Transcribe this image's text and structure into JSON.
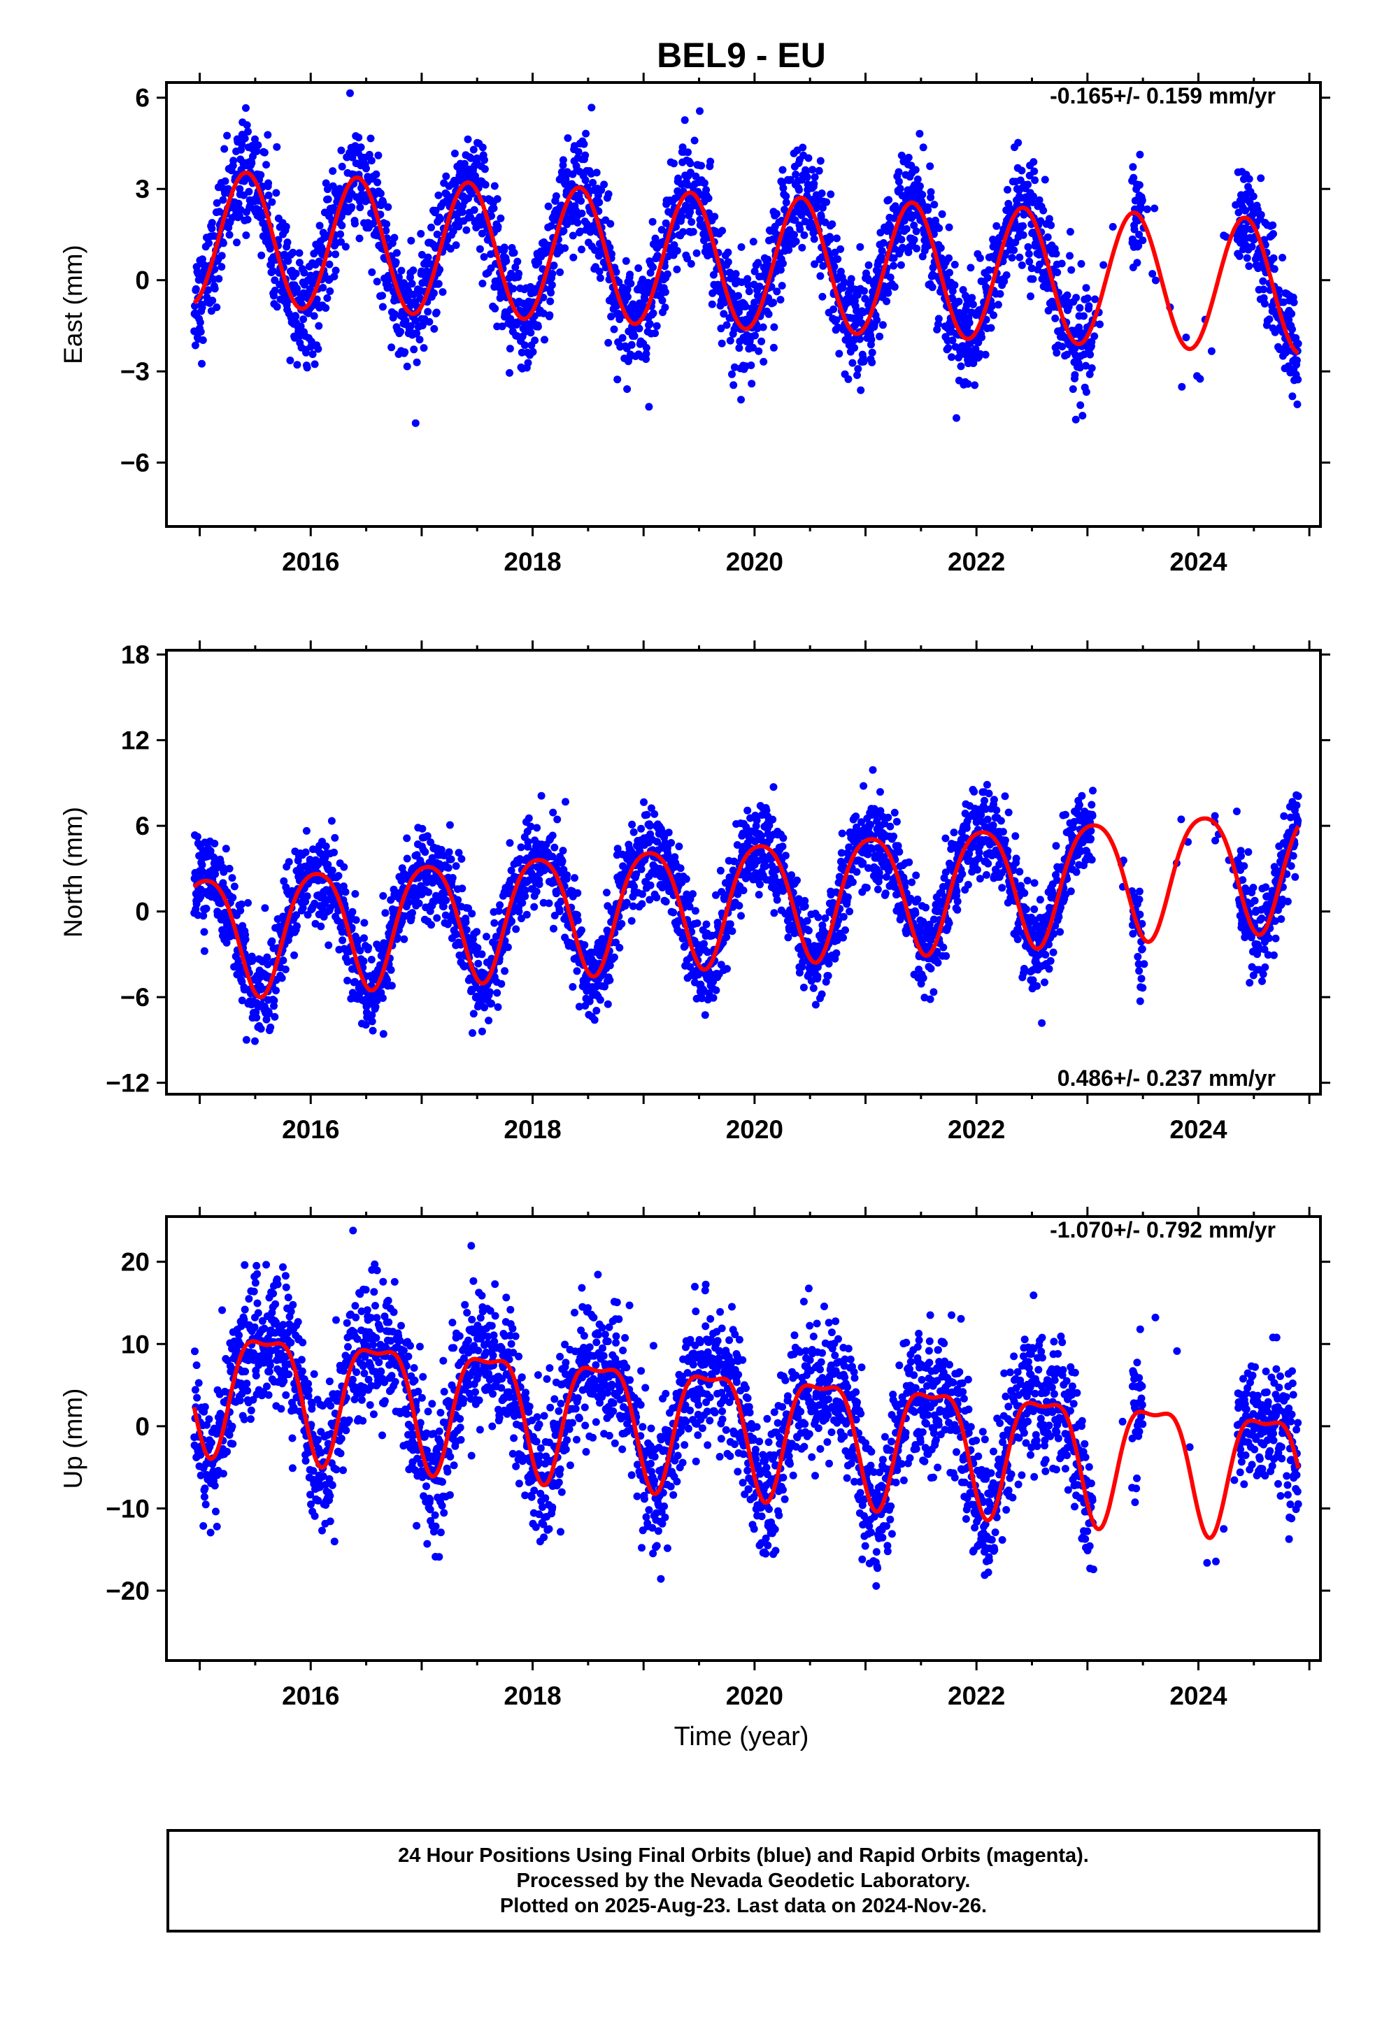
{
  "title": "BEL9 - EU",
  "colors": {
    "data": "#0000ff",
    "model": "#ff0000",
    "frame": "#000000"
  },
  "xlabel": "Time (year)",
  "caption": {
    "line1": "24 Hour Positions Using Final Orbits (blue) and Rapid Orbits (magenta).",
    "line2": "Processed by the Nevada Geodetic Laboratory.",
    "line3": "Plotted on 2025-Aug-23. Last data on 2024-Nov-26."
  },
  "chart_data": [
    {
      "type": "scatter",
      "ylabel": "East (mm)",
      "rate_label": "-0.165+/- 0.159 mm/yr",
      "rate_position": "top-right",
      "xlim": [
        2014.7,
        2025.1
      ],
      "ylim": [
        -8.1,
        6.5
      ],
      "xticks": [
        2016,
        2018,
        2020,
        2022,
        2024
      ],
      "yticks": [
        -6,
        -3,
        0,
        3,
        6
      ],
      "ytick_labels": [
        "−6",
        "−3",
        "0",
        "3",
        "6"
      ],
      "model": {
        "offset": 0.6,
        "slope": -0.165,
        "amp": 2.2,
        "phase_peak": 0.42,
        "amp2": 0.0,
        "phase2": 0.0,
        "t0": 2019.9,
        "x_start": 2014.95,
        "x_end": 2024.9
      },
      "data_summary": {
        "x_start": 2014.95,
        "x_end": 2024.9,
        "scatter_sd": 0.9,
        "gaps": [
          [
            2023.05,
            2023.4
          ],
          [
            2023.5,
            2024.35
          ]
        ]
      }
    },
    {
      "type": "scatter",
      "ylabel": "North (mm)",
      "rate_label": "0.486+/- 0.237 mm/yr",
      "rate_position": "bottom-right",
      "xlim": [
        2014.7,
        2025.1
      ],
      "ylim": [
        -12.8,
        18.3
      ],
      "xticks": [
        2016,
        2018,
        2020,
        2022,
        2024
      ],
      "yticks": [
        -12,
        -6,
        0,
        6,
        12,
        18
      ],
      "ytick_labels": [
        "−12",
        "−6",
        "0",
        "6",
        "12",
        "18"
      ],
      "model": {
        "offset": 0.9,
        "slope": 0.486,
        "amp": 4.2,
        "phase_peak": 0.05,
        "amp2": 0.6,
        "phase2": 0.3,
        "t0": 2019.9,
        "x_start": 2014.95,
        "x_end": 2024.9
      },
      "data_summary": {
        "x_start": 2014.95,
        "x_end": 2024.9,
        "scatter_sd": 1.6,
        "gaps": [
          [
            2023.05,
            2023.4
          ],
          [
            2023.5,
            2024.35
          ]
        ]
      }
    },
    {
      "type": "scatter",
      "ylabel": "Up (mm)",
      "rate_label": "-1.070+/- 0.792 mm/yr",
      "rate_position": "top-right",
      "xlim": [
        2014.7,
        2025.1
      ],
      "ylim": [
        -28.5,
        25.5
      ],
      "xticks": [
        2016,
        2018,
        2020,
        2022,
        2024
      ],
      "yticks": [
        -20,
        -10,
        0,
        10,
        20
      ],
      "ytick_labels": [
        "−20",
        "−10",
        "0",
        "10",
        "20"
      ],
      "model": {
        "offset": 0.5,
        "slope": -1.07,
        "amp": 7.2,
        "phase_peak": 0.6,
        "amp2": 2.4,
        "phase2": 0.35,
        "t0": 2019.9,
        "x_start": 2014.95,
        "x_end": 2024.9
      },
      "data_summary": {
        "x_start": 2014.95,
        "x_end": 2024.9,
        "scatter_sd": 4.2,
        "gaps": [
          [
            2023.05,
            2023.4
          ],
          [
            2023.5,
            2024.35
          ]
        ]
      }
    }
  ]
}
